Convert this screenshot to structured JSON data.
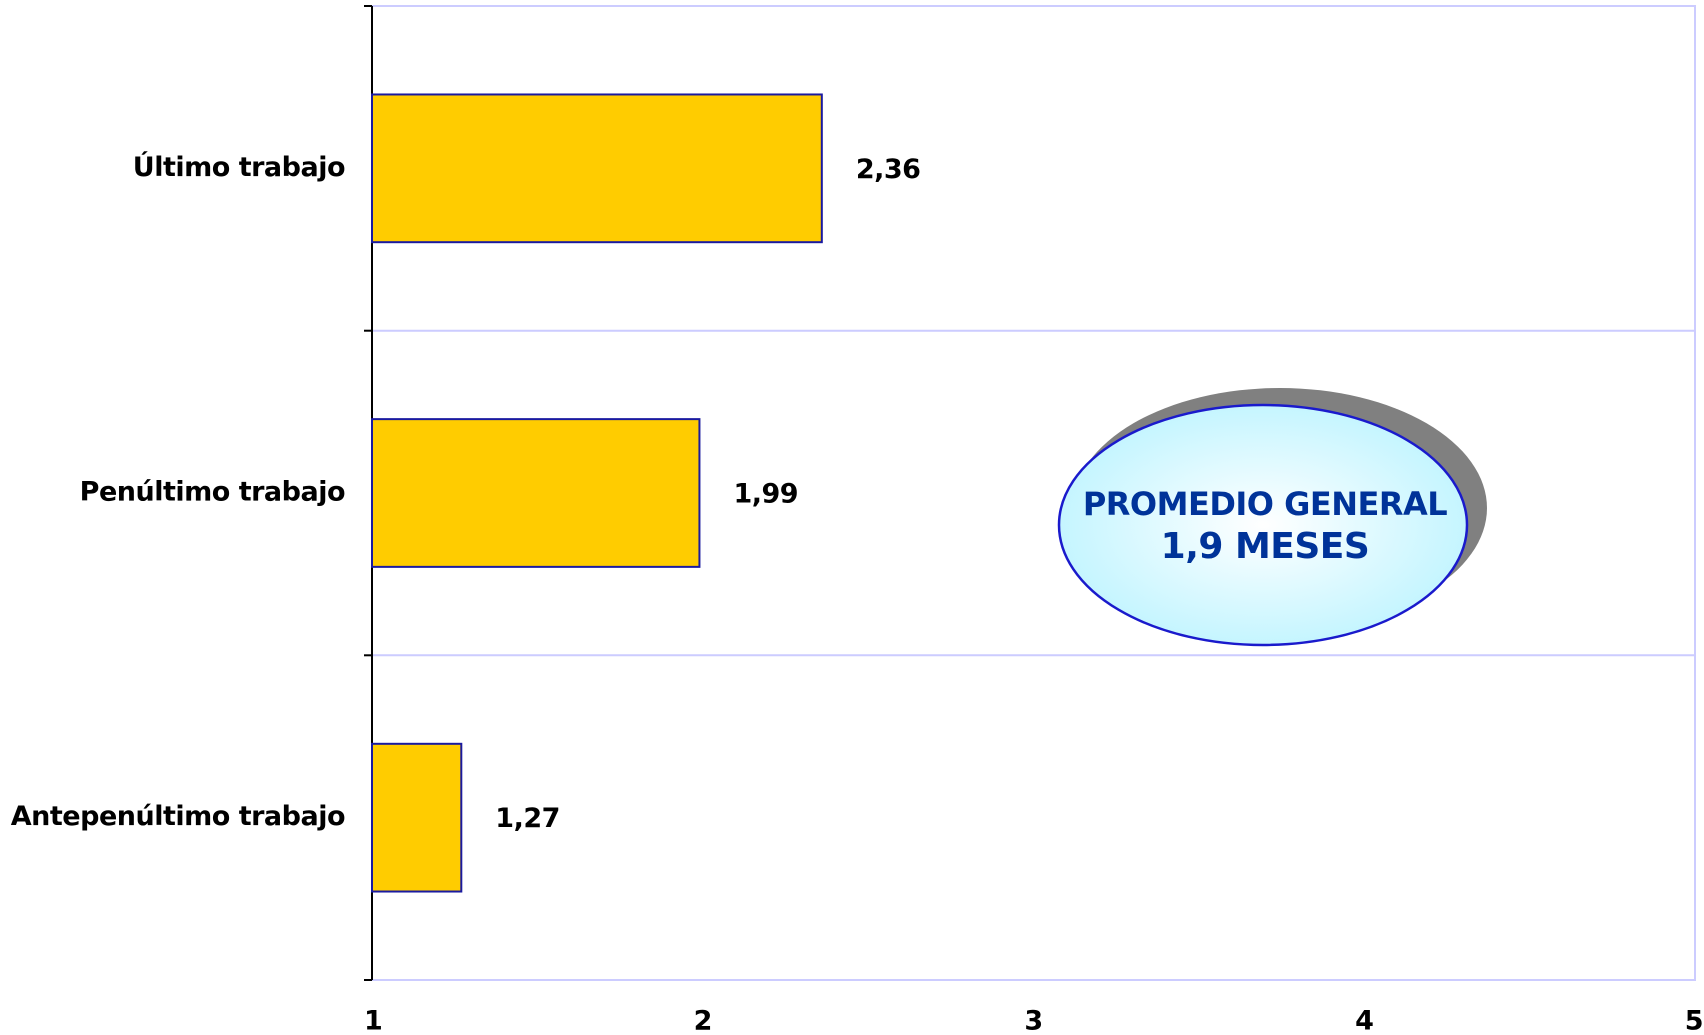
{
  "chart_data": {
    "type": "bar",
    "orientation": "horizontal",
    "categories": [
      "Último trabajo",
      "Penúltimo trabajo",
      "Antepenúltimo trabajo"
    ],
    "values": [
      2.36,
      1.99,
      1.27
    ],
    "value_labels": [
      "2,36",
      "1,99",
      "1,27"
    ],
    "color": "#ffcc00",
    "xlim": [
      1,
      5
    ],
    "xticks": [
      1,
      2,
      3,
      4,
      5
    ],
    "grid": false,
    "annotations": [
      "PROMEDIO GENERAL",
      "1,9 MESES"
    ]
  }
}
